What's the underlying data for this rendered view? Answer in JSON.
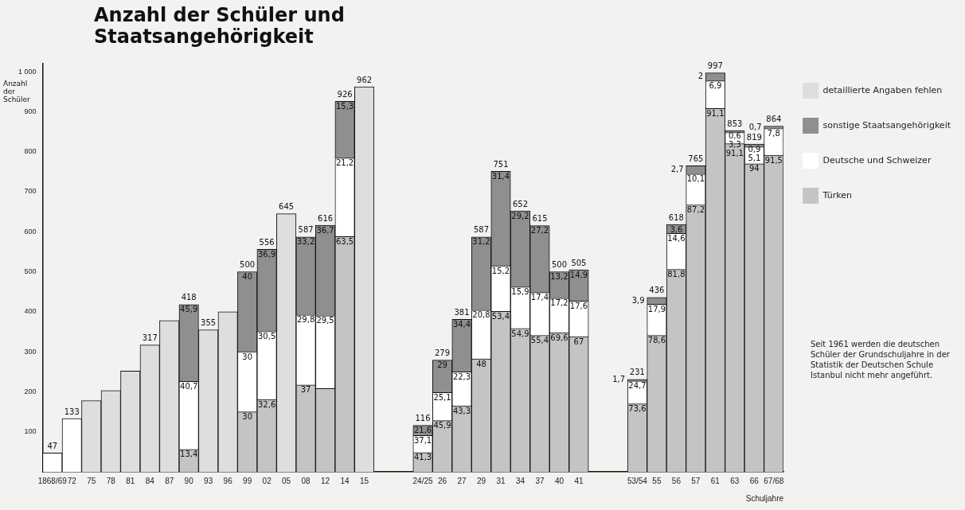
{
  "chart_data": {
    "type": "bar",
    "title": "Anzahl der Schüler und Staatsangehörigkeit",
    "xlabel": "Schuljahre",
    "ylabel": "Anzahl der Schüler",
    "stacked": true,
    "legend": "right",
    "ylim": [
      0,
      1020
    ],
    "yticks": [
      100,
      200,
      300,
      400,
      500,
      600,
      700,
      800,
      900,
      {
        "value": 1000,
        "label": "1 000"
      }
    ],
    "categories": [
      "1868/69",
      "72",
      "75",
      "78",
      "81",
      "84",
      "87",
      "90",
      "93",
      "96",
      "99",
      "02",
      "05",
      "08",
      "12",
      "14",
      "15",
      null,
      null,
      "24/25",
      "26",
      "27",
      "29",
      "31",
      "34",
      "37",
      "40",
      "41",
      null,
      null,
      "53/54",
      "55",
      "56",
      "57",
      "61",
      "63",
      "66",
      "67/68"
    ],
    "series": [
      {
        "name": "Türken",
        "color": "#c4c4c4",
        "values": [
          null,
          null,
          null,
          null,
          null,
          null,
          null,
          56,
          null,
          null,
          150,
          181,
          null,
          217,
          208,
          588,
          null,
          null,
          null,
          48,
          128,
          165,
          282,
          401,
          358,
          341,
          348,
          338,
          null,
          null,
          170,
          341,
          506,
          667,
          908,
          820,
          770,
          791
        ]
      },
      {
        "name": "Deutsche und Schweizer",
        "color": "#ffffff",
        "values": [
          47,
          133,
          null,
          null,
          null,
          null,
          null,
          170,
          null,
          null,
          150,
          170,
          null,
          175,
          182,
          196,
          null,
          null,
          null,
          43,
          70,
          85,
          122,
          114,
          104,
          107,
          86,
          89,
          null,
          null,
          57,
          78,
          90,
          77,
          69,
          28,
          42,
          67
        ]
      },
      {
        "name": "sonstige Staatsangehörigkeit",
        "color": "#8f8f8f",
        "values": [
          null,
          null,
          null,
          null,
          null,
          null,
          null,
          192,
          null,
          null,
          200,
          205,
          null,
          195,
          226,
          142,
          null,
          null,
          null,
          25,
          81,
          131,
          183,
          236,
          190,
          167,
          66,
          78,
          null,
          null,
          4,
          17,
          22,
          21,
          20,
          5,
          7,
          6
        ]
      },
      {
        "name": "detaillierte Angaben fehlen",
        "color": "#dedede",
        "values": [
          null,
          null,
          178,
          203,
          252,
          317,
          378,
          null,
          355,
          400,
          null,
          null,
          645,
          null,
          null,
          null,
          962,
          null,
          null,
          null,
          null,
          null,
          null,
          null,
          null,
          null,
          null,
          null,
          null,
          null,
          null,
          null,
          null,
          null,
          null,
          null,
          null,
          null
        ]
      }
    ],
    "totals": [
      "47",
      "133",
      null,
      null,
      null,
      "317",
      null,
      "418",
      "355",
      null,
      "500",
      "556",
      "645",
      "587",
      "616",
      "926",
      "962",
      null,
      null,
      "116",
      "279",
      "381",
      "587",
      "751",
      "652",
      "615",
      "500",
      "505",
      null,
      null,
      "231",
      "436",
      "618",
      "765",
      "997",
      "853",
      "819",
      "864"
    ],
    "annotations": [
      {
        "text": "13,4",
        "x": "90",
        "y": 56
      },
      {
        "text": "40,7",
        "x": "90",
        "y": 226
      },
      {
        "text": "45,9",
        "x": "90",
        "y": 418
      },
      {
        "text": "30",
        "x": "99",
        "y": 150
      },
      {
        "text": "30",
        "x": "99",
        "y": 300
      },
      {
        "text": "40",
        "x": "99",
        "y": 500
      },
      {
        "text": "32,6",
        "x": "02",
        "y": 181
      },
      {
        "text": "30,5",
        "x": "02",
        "y": 351
      },
      {
        "text": "36,9",
        "x": "02",
        "y": 556
      },
      {
        "text": "37",
        "x": "08",
        "y": 217
      },
      {
        "text": "29,8",
        "x": "08",
        "y": 392
      },
      {
        "text": "33,2",
        "x": "08",
        "y": 587
      },
      {
        "text": "29,5",
        "x": "12",
        "y": 390
      },
      {
        "text": "36,7",
        "x": "12",
        "y": 616
      },
      {
        "text": "63,5",
        "x": "14",
        "y": 588
      },
      {
        "text": "21,2",
        "x": "14",
        "y": 784
      },
      {
        "text": "15,3",
        "x": "14",
        "y": 926
      },
      {
        "text": "41,3",
        "x": "24/25",
        "y": 48
      },
      {
        "text": "37,1",
        "x": "24/25",
        "y": 91
      },
      {
        "text": "21,6",
        "x": "24/25",
        "y": 116
      },
      {
        "text": "45,9",
        "x": "26",
        "y": 128
      },
      {
        "text": "25,1",
        "x": "26",
        "y": 198
      },
      {
        "text": "29",
        "x": "26",
        "y": 279
      },
      {
        "text": "43,3",
        "x": "27",
        "y": 165
      },
      {
        "text": "22,3",
        "x": "27",
        "y": 250
      },
      {
        "text": "34,4",
        "x": "27",
        "y": 381
      },
      {
        "text": "48",
        "x": "29",
        "y": 282
      },
      {
        "text": "20,8",
        "x": "29",
        "y": 404
      },
      {
        "text": "31,2",
        "x": "29",
        "y": 587
      },
      {
        "text": "53,4",
        "x": "31",
        "y": 401
      },
      {
        "text": "15,2",
        "x": "31",
        "y": 515
      },
      {
        "text": "31,4",
        "x": "31",
        "y": 751
      },
      {
        "text": "54,9",
        "x": "34",
        "y": 358
      },
      {
        "text": "15,9",
        "x": "34",
        "y": 462
      },
      {
        "text": "29,2",
        "x": "34",
        "y": 652
      },
      {
        "text": "55,4",
        "x": "37",
        "y": 341
      },
      {
        "text": "17,4",
        "x": "37",
        "y": 448
      },
      {
        "text": "27,2",
        "x": "37",
        "y": 615
      },
      {
        "text": "69,6",
        "x": "40",
        "y": 348
      },
      {
        "text": "17,2",
        "x": "40",
        "y": 434
      },
      {
        "text": "13,2",
        "x": "40",
        "y": 500
      },
      {
        "text": "67",
        "x": "41",
        "y": 338
      },
      {
        "text": "17,6",
        "x": "41",
        "y": 427
      },
      {
        "text": "14,9",
        "x": "41",
        "y": 505
      },
      {
        "text": "73,6",
        "x": "53/54",
        "y": 170
      },
      {
        "text": "24,7",
        "x": "53/54",
        "y": 227
      },
      {
        "text": "1,7",
        "x": "53/54",
        "y": 231
      },
      {
        "text": "78,6",
        "x": "55",
        "y": 341
      },
      {
        "text": "17,9",
        "x": "55",
        "y": 419
      },
      {
        "text": "3,9",
        "x": "55",
        "y": 436
      },
      {
        "text": "81,8",
        "x": "56",
        "y": 506
      },
      {
        "text": "14,6",
        "x": "56",
        "y": 596
      },
      {
        "text": "3,6",
        "x": "56",
        "y": 618
      },
      {
        "text": "87,2",
        "x": "57",
        "y": 667
      },
      {
        "text": "10,1",
        "x": "57",
        "y": 744
      },
      {
        "text": "2,7",
        "x": "57",
        "y": 765
      },
      {
        "text": "91,1",
        "x": "61",
        "y": 908
      },
      {
        "text": "6,9",
        "x": "61",
        "y": 977
      },
      {
        "text": "2",
        "x": "61",
        "y": 997
      },
      {
        "text": "91,1",
        "x": "63",
        "y": 820
      },
      {
        "text": "3,3",
        "x": "63",
        "y": 848
      },
      {
        "text": "0,6",
        "x": "63",
        "y": 853
      },
      {
        "text": "94",
        "x": "66",
        "y": 770
      },
      {
        "text": "5,1",
        "x": "66",
        "y": 812
      },
      {
        "text": "0,9",
        "x": "66",
        "y": 819
      },
      {
        "text": "91,5",
        "x": "67/68",
        "y": 791
      },
      {
        "text": "7,8",
        "x": "67/68",
        "y": 858
      },
      {
        "text": "0,7",
        "x": "67/68",
        "y": 864
      },
      "Seit 1961 werden die deutschen Schüler der Grundschuljahre in der Statistik der Deutschen Schule Istanbul nicht mehr angeführt."
    ]
  }
}
